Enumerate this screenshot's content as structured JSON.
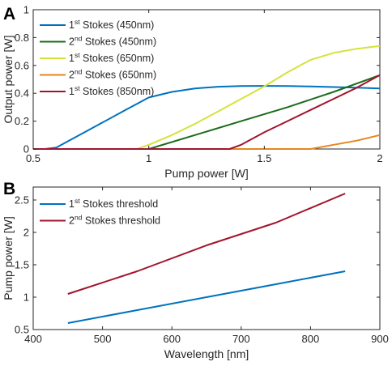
{
  "chart_data": [
    {
      "type": "line",
      "panel_label": "A",
      "xlabel": "Pump power [W]",
      "ylabel": "Output power [W]",
      "xlim": [
        0.5,
        2
      ],
      "ylim": [
        0,
        1
      ],
      "xticks": [
        "0.5",
        "1",
        "1.5",
        "2"
      ],
      "yticks": [
        "0",
        "0.2",
        "0.4",
        "0.6",
        "0.8",
        "1"
      ],
      "grid": false,
      "legend_position": "top-left",
      "series": [
        {
          "name": "1st Stokes (450nm)",
          "legend": {
            "order": "1",
            "suffix": "st",
            "rest": " Stokes (450nm)"
          },
          "color": "#0072BD",
          "x": [
            0.55,
            0.6,
            0.7,
            0.8,
            0.9,
            1.0,
            1.1,
            1.2,
            1.3,
            1.4,
            1.5,
            1.6,
            1.7,
            1.8,
            1.9,
            2.0
          ],
          "y": [
            0,
            0.01,
            0.1,
            0.19,
            0.28,
            0.37,
            0.41,
            0.435,
            0.447,
            0.452,
            0.453,
            0.452,
            0.449,
            0.445,
            0.44,
            0.435
          ]
        },
        {
          "name": "2nd Stokes (450nm)",
          "legend": {
            "order": "2",
            "suffix": "nd",
            "rest": " Stokes (450nm)"
          },
          "color": "#1B6B1B",
          "x": [
            0.5,
            1.0,
            1.2,
            1.4,
            1.6,
            1.8,
            2.0
          ],
          "y": [
            0,
            0,
            0.1,
            0.2,
            0.3,
            0.41,
            0.53
          ]
        },
        {
          "name": "1st Stokes (650nm)",
          "legend": {
            "order": "1",
            "suffix": "st",
            "rest": " Stokes (650nm)"
          },
          "color": "#D4E33A",
          "x": [
            0.5,
            0.95,
            1.0,
            1.1,
            1.2,
            1.3,
            1.4,
            1.5,
            1.6,
            1.7,
            1.8,
            1.9,
            2.0
          ],
          "y": [
            0,
            0,
            0.03,
            0.1,
            0.18,
            0.27,
            0.36,
            0.45,
            0.55,
            0.64,
            0.69,
            0.72,
            0.74
          ]
        },
        {
          "name": "2nd Stokes (650nm)",
          "legend": {
            "order": "2",
            "suffix": "nd",
            "rest": " Stokes (650nm)"
          },
          "color": "#E8851E",
          "x": [
            0.5,
            1.7,
            1.8,
            1.9,
            2.0
          ],
          "y": [
            0,
            0,
            0.03,
            0.06,
            0.1
          ]
        },
        {
          "name": "1st Stokes (850nm)",
          "legend": {
            "order": "1",
            "suffix": "st",
            "rest": " Stokes (850nm)"
          },
          "color": "#A2142F",
          "x": [
            0.5,
            1.35,
            1.4,
            1.5,
            1.6,
            1.7,
            1.8,
            1.9,
            2.0
          ],
          "y": [
            0,
            0,
            0.03,
            0.12,
            0.2,
            0.28,
            0.36,
            0.44,
            0.53
          ]
        }
      ]
    },
    {
      "type": "line",
      "panel_label": "B",
      "xlabel": "Wavelength [nm]",
      "ylabel": "Pump power [W]",
      "xlim": [
        400,
        900
      ],
      "ylim": [
        0.5,
        2.7
      ],
      "xticks": [
        "400",
        "500",
        "600",
        "700",
        "800",
        "900"
      ],
      "yticks": [
        "0.5",
        "1",
        "1.5",
        "2",
        "2.5"
      ],
      "grid": false,
      "legend_position": "top-left",
      "series": [
        {
          "name": "1st Stokes threshold",
          "legend": {
            "order": "1",
            "suffix": "st",
            "rest": " Stokes threshold"
          },
          "color": "#0072BD",
          "x": [
            450,
            550,
            650,
            750,
            850
          ],
          "y": [
            0.6,
            0.8,
            1.0,
            1.2,
            1.4
          ]
        },
        {
          "name": "2nd Stokes threshold",
          "legend": {
            "order": "2",
            "suffix": "nd",
            "rest": " Stokes threshold"
          },
          "color": "#A2142F",
          "x": [
            450,
            550,
            650,
            750,
            850
          ],
          "y": [
            1.05,
            1.4,
            1.8,
            2.15,
            2.6
          ]
        }
      ]
    }
  ]
}
